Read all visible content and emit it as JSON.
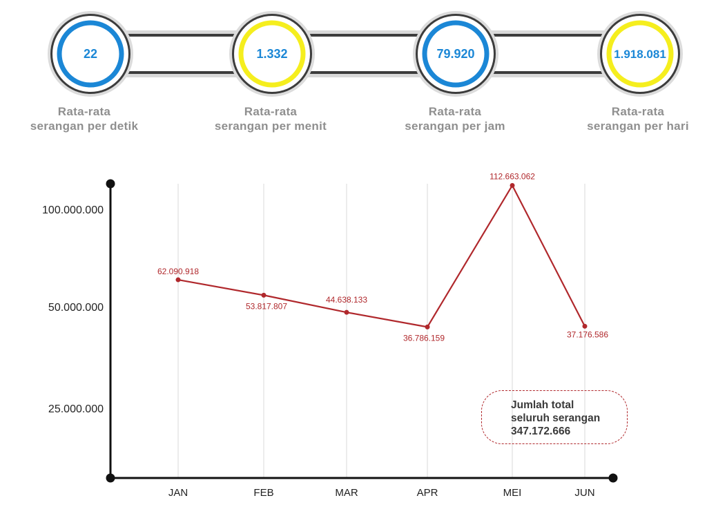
{
  "stats": [
    {
      "value": "22",
      "label_line1": "Rata-rata",
      "label_line2": "serangan per detik",
      "ring_color": "#1b87d6"
    },
    {
      "value": "1.332",
      "label_line1": "Rata-rata",
      "label_line2": "serangan per menit",
      "ring_color": "#f5ee1e"
    },
    {
      "value": "79.920",
      "label_line1": "Rata-rata",
      "label_line2": "serangan per jam",
      "ring_color": "#1b87d6"
    },
    {
      "value": "1.918.081",
      "label_line1": "Rata-rata",
      "label_line2": "serangan per hari",
      "ring_color": "#f5ee1e"
    }
  ],
  "colors": {
    "value_text": "#1b87d6",
    "label_text": "#8f8f8f",
    "line": "#b0282c",
    "axis": "#111111"
  },
  "total_box": {
    "line1": "Jumlah total",
    "line2": "seluruh serangan",
    "value": "347.172.666"
  },
  "chart_data": {
    "type": "line",
    "categories": [
      "JAN",
      "FEB",
      "MAR",
      "APR",
      "MEI",
      "JUN"
    ],
    "values": [
      62090918,
      53817807,
      44638133,
      36786159,
      112663062,
      37176586
    ],
    "data_labels": [
      "62.090.918",
      "53.817.807",
      "44.638.133",
      "36.786.159",
      "112.663.062",
      "37.176.586"
    ],
    "y_ticks": [
      {
        "value": 100000000,
        "label": "100.000.000"
      },
      {
        "value": 50000000,
        "label": "50.000.000"
      },
      {
        "value": 25000000,
        "label": "25.000.000"
      }
    ],
    "vertical_grid": true,
    "title": "",
    "xlabel": "",
    "ylabel": ""
  }
}
